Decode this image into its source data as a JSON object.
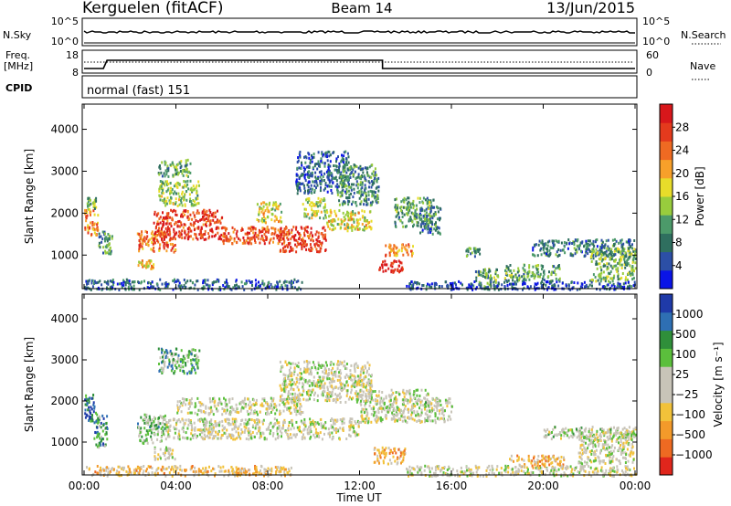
{
  "header": {
    "station": "Kerguelen (fitACF)",
    "beam": "Beam 14",
    "date": "13/Jun/2015"
  },
  "strip": {
    "nsky_label": "N.Sky",
    "nsky_ticks": [
      "10^5",
      "10^0"
    ],
    "nsearch_label": "N.Search",
    "nsearch_ticks": [
      "10^5",
      "10^0"
    ],
    "freq_label_1": "Freq.",
    "freq_label_2": "[MHz]",
    "freq_ticks": [
      "18",
      "8"
    ],
    "nave_label": "Nave",
    "nave_ticks": [
      "60",
      "0"
    ],
    "cpid_label": "CPID",
    "mode_text": "normal (fast) 151"
  },
  "chart_data": [
    {
      "type": "heatmap",
      "name": "power-panel",
      "ylabel": "Slant Range [km]",
      "yticks": [
        "1000",
        "2000",
        "3000",
        "4000"
      ],
      "ylim": [
        200,
        4600
      ],
      "xlim": [
        0,
        24
      ],
      "colorbar": {
        "label": "Power [dB]",
        "ticks": [
          "4",
          "8",
          "12",
          "16",
          "20",
          "24",
          "28"
        ],
        "colors": [
          "#0a14e6",
          "#2c4fa6",
          "#2f6f5f",
          "#4c9a6a",
          "#98cc3d",
          "#e8dc2a",
          "#f7a02a",
          "#ef6a22",
          "#e43a1d",
          "#d8171b"
        ]
      },
      "regions": [
        {
          "t": [
            0.0,
            0.6
          ],
          "r": [
            1500,
            2100
          ],
          "level": 0.7
        },
        {
          "t": [
            0.1,
            0.5
          ],
          "r": [
            2100,
            2400
          ],
          "level": 0.4
        },
        {
          "t": [
            0.6,
            1.2
          ],
          "r": [
            1000,
            1600
          ],
          "level": 0.3
        },
        {
          "t": [
            2.3,
            3.0
          ],
          "r": [
            700,
            900
          ],
          "level": 0.6
        },
        {
          "t": [
            2.3,
            4.0
          ],
          "r": [
            1100,
            1600
          ],
          "level": 0.75
        },
        {
          "t": [
            3.0,
            6.0
          ],
          "r": [
            1400,
            2100
          ],
          "level": 0.85
        },
        {
          "t": [
            3.2,
            5.0
          ],
          "r": [
            2200,
            2800
          ],
          "level": 0.45
        },
        {
          "t": [
            3.2,
            4.6
          ],
          "r": [
            2900,
            3300
          ],
          "level": 0.35
        },
        {
          "t": [
            6.0,
            9.0
          ],
          "r": [
            1300,
            1700
          ],
          "level": 0.8
        },
        {
          "t": [
            7.5,
            8.6
          ],
          "r": [
            1800,
            2300
          ],
          "level": 0.55
        },
        {
          "t": [
            8.5,
            10.5
          ],
          "r": [
            1100,
            1700
          ],
          "level": 0.85
        },
        {
          "t": [
            9.5,
            10.5
          ],
          "r": [
            1900,
            2400
          ],
          "level": 0.5
        },
        {
          "t": [
            9.2,
            11.5
          ],
          "r": [
            2500,
            3500
          ],
          "level": 0.2
        },
        {
          "t": [
            10.5,
            12.5
          ],
          "r": [
            1600,
            2100
          ],
          "level": 0.55
        },
        {
          "t": [
            11.0,
            12.8
          ],
          "r": [
            2200,
            3200
          ],
          "level": 0.3
        },
        {
          "t": [
            12.7,
            13.9
          ],
          "r": [
            600,
            900
          ],
          "level": 0.95
        },
        {
          "t": [
            13.0,
            14.3
          ],
          "r": [
            1000,
            1300
          ],
          "level": 0.7
        },
        {
          "t": [
            13.5,
            15.2
          ],
          "r": [
            1700,
            2400
          ],
          "level": 0.35
        },
        {
          "t": [
            14.6,
            15.5
          ],
          "r": [
            1500,
            2200
          ],
          "level": 0.25
        },
        {
          "t": [
            16.6,
            17.2
          ],
          "r": [
            1000,
            1200
          ],
          "level": 0.3
        },
        {
          "t": [
            17.0,
            18.0
          ],
          "r": [
            200,
            700
          ],
          "level": 0.35
        },
        {
          "t": [
            18.3,
            20.7
          ],
          "r": [
            400,
            800
          ],
          "level": 0.35
        },
        {
          "t": [
            19.5,
            24.0
          ],
          "r": [
            1000,
            1400
          ],
          "level": 0.25
        },
        {
          "t": [
            22.0,
            24.0
          ],
          "r": [
            400,
            1200
          ],
          "level": 0.4
        },
        {
          "t": [
            0.0,
            9.5
          ],
          "r": [
            200,
            450
          ],
          "level": 0.2
        },
        {
          "t": [
            14.0,
            24.0
          ],
          "r": [
            200,
            400
          ],
          "level": 0.15
        }
      ]
    },
    {
      "type": "heatmap",
      "name": "velocity-panel",
      "ylabel": "Slant Range [km]",
      "yticks": [
        "1000",
        "2000",
        "3000",
        "4000"
      ],
      "ylim": [
        200,
        4600
      ],
      "xlim": [
        0,
        24
      ],
      "xlabel": "Time UT",
      "xticks": [
        "00:00",
        "04:00",
        "08:00",
        "12:00",
        "16:00",
        "20:00",
        "00:00"
      ],
      "colorbar": {
        "label": "Velocity [m s⁻¹]",
        "ticks": [
          "1000",
          "500",
          "100",
          "25",
          "−25",
          "−100",
          "−500",
          "−1000"
        ],
        "colors": [
          "#1f3aa8",
          "#2e6fb3",
          "#2f8f3a",
          "#5bbf3c",
          "#c8c4b8",
          "#c8c4b8",
          "#f2c23a",
          "#f39a2a",
          "#ee6a22",
          "#e0261c"
        ]
      },
      "regions": [
        {
          "t": [
            0.0,
            0.5
          ],
          "r": [
            1500,
            2200
          ],
          "level": 0.85
        },
        {
          "t": [
            0.4,
            1.0
          ],
          "r": [
            900,
            1700
          ],
          "level": 0.75
        },
        {
          "t": [
            2.3,
            3.5
          ],
          "r": [
            1000,
            1700
          ],
          "level": 0.65
        },
        {
          "t": [
            3.0,
            4.0
          ],
          "r": [
            600,
            900
          ],
          "level": 0.5
        },
        {
          "t": [
            3.5,
            12.0
          ],
          "r": [
            1100,
            1600
          ],
          "level": 0.5
        },
        {
          "t": [
            4.0,
            9.5
          ],
          "r": [
            1700,
            2100
          ],
          "level": 0.5
        },
        {
          "t": [
            3.2,
            5.0
          ],
          "r": [
            2700,
            3300
          ],
          "level": 0.7
        },
        {
          "t": [
            8.5,
            12.5
          ],
          "r": [
            2000,
            3000
          ],
          "level": 0.5
        },
        {
          "t": [
            12.0,
            15.0
          ],
          "r": [
            1500,
            2300
          ],
          "level": 0.5
        },
        {
          "t": [
            12.6,
            14.0
          ],
          "r": [
            500,
            900
          ],
          "level": 0.3
        },
        {
          "t": [
            14.8,
            16.0
          ],
          "r": [
            1500,
            2100
          ],
          "level": 0.55
        },
        {
          "t": [
            18.5,
            21.0
          ],
          "r": [
            400,
            700
          ],
          "level": 0.3
        },
        {
          "t": [
            20.0,
            24.0
          ],
          "r": [
            1100,
            1400
          ],
          "level": 0.55
        },
        {
          "t": [
            21.5,
            24.0
          ],
          "r": [
            500,
            1300
          ],
          "level": 0.5
        },
        {
          "t": [
            0.0,
            9.0
          ],
          "r": [
            200,
            450
          ],
          "level": 0.35
        },
        {
          "t": [
            14.0,
            24.0
          ],
          "r": [
            200,
            450
          ],
          "level": 0.5
        }
      ]
    }
  ]
}
